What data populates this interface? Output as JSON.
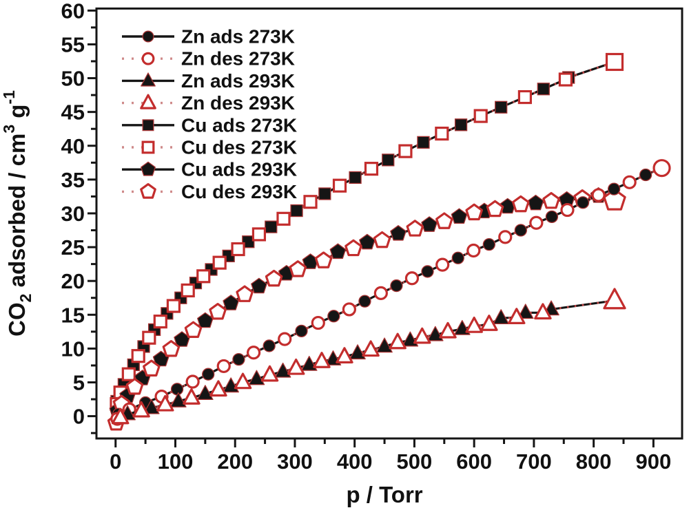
{
  "figure": {
    "background": "#ffffff"
  },
  "chart_data": {
    "type": "line",
    "title": "",
    "xlabel": "p / Torr",
    "ylabel": "CO2 adsorbed / cm3 g-1",
    "ylabel_parts": [
      {
        "t": "CO",
        "pos": "n"
      },
      {
        "t": "2",
        "pos": "sub"
      },
      {
        "t": " adsorbed / cm",
        "pos": "n"
      },
      {
        "t": "3",
        "pos": "sup"
      },
      {
        "t": " g",
        "pos": "n"
      },
      {
        "t": "-1",
        "pos": "sup"
      }
    ],
    "xlim": [
      -32,
      948
    ],
    "ylim": [
      -3.3,
      60.3
    ],
    "x_major_ticks": [
      0,
      100,
      200,
      300,
      400,
      500,
      600,
      700,
      800,
      900
    ],
    "x_minor_ticks": [
      50,
      150,
      250,
      350,
      450,
      550,
      650,
      750,
      850
    ],
    "y_major_ticks": [
      0,
      5,
      10,
      15,
      20,
      25,
      30,
      35,
      40,
      45,
      50,
      55,
      60
    ],
    "y_minor_ticks": [
      -2.5,
      2.5,
      7.5,
      12.5,
      17.5,
      22.5,
      27.5,
      32.5,
      37.5,
      42.5,
      47.5,
      52.5,
      57.5
    ],
    "grid": false,
    "legend_position": "top-left",
    "colors": {
      "frame": "#151515",
      "ads_line": "#151515",
      "des_line": "#bc4444",
      "des_line_legend": "#cf8a8a",
      "open_marker_stroke": "#c32d2d",
      "filled_marker_fill": "#151515",
      "filled_marker_edge": "#a93434",
      "open_marker_fill": "#ffffff",
      "text": "#111111"
    },
    "draw_order": [
      "Cu-273",
      "Cu-293",
      "Zn-273",
      "Zn-293"
    ],
    "series": [
      {
        "name": "Zn ads 273K",
        "pair": "Zn-273",
        "role": "ads",
        "marker": "circle",
        "filled": true,
        "points": [
          [
            5,
            0.3
          ],
          [
            50,
            2.0
          ],
          [
            103,
            4.0
          ],
          [
            155,
            6.2
          ],
          [
            206,
            8.4
          ],
          [
            257,
            10.4
          ],
          [
            311,
            12.6
          ],
          [
            365,
            14.8
          ],
          [
            417,
            17.0
          ],
          [
            470,
            19.3
          ],
          [
            522,
            21.4
          ],
          [
            573,
            23.4
          ],
          [
            625,
            25.4
          ],
          [
            678,
            27.5
          ],
          [
            730,
            29.5
          ],
          [
            782,
            31.6
          ],
          [
            834,
            33.6
          ],
          [
            887,
            35.7
          ]
        ]
      },
      {
        "name": "Zn des 273K",
        "pair": "Zn-273",
        "role": "des",
        "marker": "circle",
        "filled": false,
        "points": [
          [
            914,
            36.7
          ],
          [
            860,
            34.6
          ],
          [
            808,
            32.7
          ],
          [
            756,
            30.5
          ],
          [
            704,
            28.6
          ],
          [
            652,
            26.5
          ],
          [
            599,
            24.5
          ],
          [
            547,
            22.4
          ],
          [
            496,
            20.4
          ],
          [
            444,
            18.2
          ],
          [
            391,
            15.8
          ],
          [
            339,
            13.8
          ],
          [
            283,
            11.4
          ],
          [
            231,
            9.4
          ],
          [
            181,
            7.4
          ],
          [
            129,
            5.1
          ],
          [
            77,
            2.9
          ],
          [
            23,
            1.0
          ],
          [
            3,
            -0.4
          ]
        ]
      },
      {
        "name": "Zn ads 293K",
        "pair": "Zn-293",
        "role": "ads",
        "marker": "triangle",
        "filled": true,
        "points": [
          [
            20,
            0.3
          ],
          [
            60,
            1.2
          ],
          [
            105,
            2.2
          ],
          [
            150,
            3.3
          ],
          [
            193,
            4.4
          ],
          [
            236,
            5.5
          ],
          [
            280,
            6.6
          ],
          [
            324,
            7.6
          ],
          [
            364,
            8.4
          ],
          [
            405,
            9.3
          ],
          [
            450,
            10.3
          ],
          [
            493,
            11.2
          ],
          [
            535,
            12.0
          ],
          [
            580,
            12.9
          ],
          [
            645,
            14.5
          ],
          [
            686,
            15.3
          ],
          [
            729,
            15.8
          ]
        ]
      },
      {
        "name": "Zn des 293K",
        "pair": "Zn-293",
        "role": "des",
        "marker": "triangle",
        "filled": false,
        "points": [
          [
            835,
            17.1
          ],
          [
            715,
            15.3
          ],
          [
            671,
            14.6
          ],
          [
            625,
            13.6
          ],
          [
            600,
            13.3
          ],
          [
            556,
            12.5
          ],
          [
            513,
            11.7
          ],
          [
            472,
            10.9
          ],
          [
            427,
            9.8
          ],
          [
            383,
            8.8
          ],
          [
            345,
            8.1
          ],
          [
            302,
            7.1
          ],
          [
            258,
            6.1
          ],
          [
            213,
            5.0
          ],
          [
            172,
            3.9
          ],
          [
            127,
            2.7
          ],
          [
            83,
            1.7
          ],
          [
            43,
            0.8
          ],
          [
            8,
            -0.2
          ]
        ]
      },
      {
        "name": "Cu ads 273K",
        "pair": "Cu-273",
        "role": "ads",
        "marker": "square",
        "filled": true,
        "points": [
          [
            2,
            2.2
          ],
          [
            14,
            4.7
          ],
          [
            30,
            7.6
          ],
          [
            47,
            10.3
          ],
          [
            65,
            12.8
          ],
          [
            86,
            15.2
          ],
          [
            109,
            17.5
          ],
          [
            134,
            19.7
          ],
          [
            160,
            21.7
          ],
          [
            189,
            23.7
          ],
          [
            222,
            25.8
          ],
          [
            260,
            28.0
          ],
          [
            303,
            30.4
          ],
          [
            350,
            32.9
          ],
          [
            401,
            35.3
          ],
          [
            456,
            37.9
          ],
          [
            515,
            40.5
          ],
          [
            578,
            43.1
          ],
          [
            645,
            45.7
          ],
          [
            716,
            48.4
          ],
          [
            758,
            50.1
          ]
        ]
      },
      {
        "name": "Cu des 273K",
        "pair": "Cu-273",
        "role": "des",
        "marker": "square",
        "filled": false,
        "points": [
          [
            835,
            52.4
          ],
          [
            753,
            49.8
          ],
          [
            685,
            47.2
          ],
          [
            611,
            44.4
          ],
          [
            546,
            41.8
          ],
          [
            485,
            39.2
          ],
          [
            428,
            36.6
          ],
          [
            375,
            34.1
          ],
          [
            326,
            31.7
          ],
          [
            281,
            29.2
          ],
          [
            240,
            26.9
          ],
          [
            205,
            24.7
          ],
          [
            174,
            22.7
          ],
          [
            147,
            20.7
          ],
          [
            121,
            18.6
          ],
          [
            97,
            16.3
          ],
          [
            75,
            14.0
          ],
          [
            56,
            11.6
          ],
          [
            38,
            8.9
          ],
          [
            22,
            6.2
          ],
          [
            8,
            3.5
          ],
          [
            2,
            1.8
          ]
        ]
      },
      {
        "name": "Cu ads 293K",
        "pair": "Cu-293",
        "role": "ads",
        "marker": "pentagon",
        "filled": true,
        "points": [
          [
            3,
            0.8
          ],
          [
            20,
            3.0
          ],
          [
            45,
            5.6
          ],
          [
            76,
            8.4
          ],
          [
            111,
            11.3
          ],
          [
            150,
            14.1
          ],
          [
            193,
            16.7
          ],
          [
            240,
            19.2
          ],
          [
            286,
            21.1
          ],
          [
            326,
            22.8
          ],
          [
            372,
            24.3
          ],
          [
            421,
            25.7
          ],
          [
            473,
            27.0
          ],
          [
            525,
            28.3
          ],
          [
            575,
            29.5
          ],
          [
            617,
            30.3
          ],
          [
            656,
            31.0
          ],
          [
            703,
            31.5
          ],
          [
            755,
            32.0
          ],
          [
            808,
            32.6
          ]
        ]
      },
      {
        "name": "Cu des 293K",
        "pair": "Cu-293",
        "role": "des",
        "marker": "pentagon",
        "filled": false,
        "points": [
          [
            835,
            31.9
          ],
          [
            781,
            32.2
          ],
          [
            729,
            31.8
          ],
          [
            678,
            31.3
          ],
          [
            635,
            30.6
          ],
          [
            600,
            30.1
          ],
          [
            550,
            28.8
          ],
          [
            501,
            27.7
          ],
          [
            446,
            26.0
          ],
          [
            398,
            24.8
          ],
          [
            348,
            23.0
          ],
          [
            305,
            21.7
          ],
          [
            265,
            20.3
          ],
          [
            216,
            18.0
          ],
          [
            171,
            15.4
          ],
          [
            130,
            12.7
          ],
          [
            93,
            9.9
          ],
          [
            60,
            7.0
          ],
          [
            32,
            4.3
          ],
          [
            10,
            1.8
          ],
          [
            1,
            -1.0
          ]
        ]
      }
    ]
  }
}
